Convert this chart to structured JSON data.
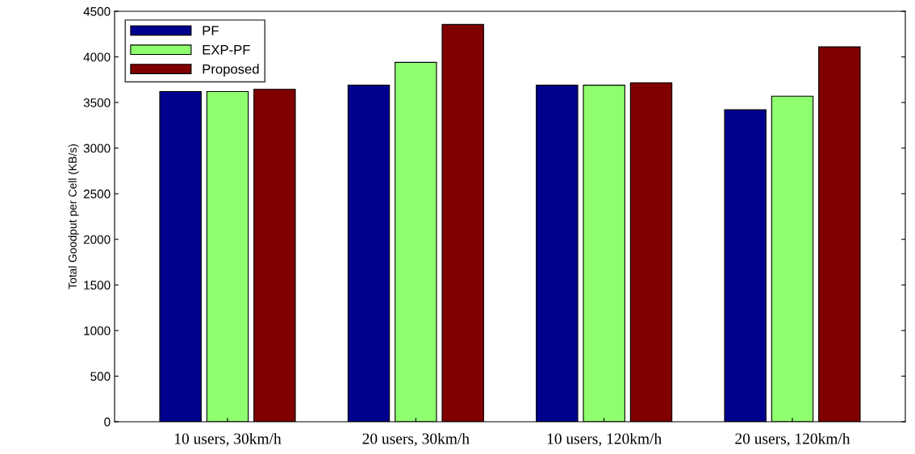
{
  "chart_data": {
    "type": "bar",
    "ylabel": "Total Goodput per Cell (KB/s)",
    "categories": [
      "10 users, 30km/h",
      "20 users, 30km/h",
      "10 users, 120km/h",
      "20 users, 120km/h"
    ],
    "series": [
      {
        "name": "PF",
        "color": "#00008f",
        "values": [
          3620,
          3690,
          3690,
          3420
        ]
      },
      {
        "name": "EXP-PF",
        "color": "#8fff70",
        "values": [
          3620,
          3940,
          3690,
          3570
        ]
      },
      {
        "name": "Proposed",
        "color": "#800000",
        "values": [
          3645,
          4355,
          3715,
          4110
        ]
      }
    ],
    "ylim": [
      0,
      4500
    ],
    "yticks": [
      0,
      500,
      1000,
      1500,
      2000,
      2500,
      3000,
      3500,
      4000,
      4500
    ],
    "grid": false,
    "legend": "top left"
  }
}
